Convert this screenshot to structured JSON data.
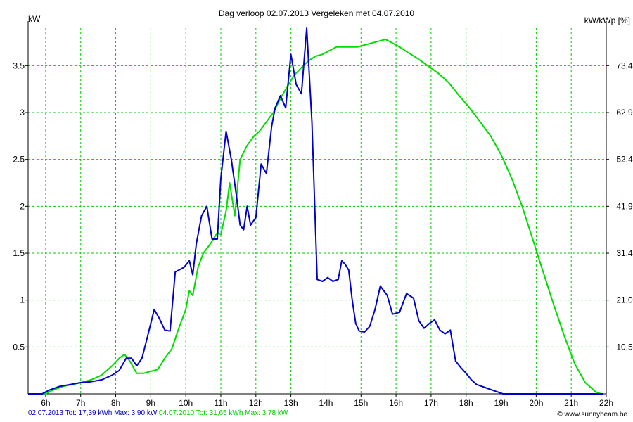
{
  "chart_data": {
    "type": "line",
    "title": "Dag  verloop 02.07.2013   Vergeleken met 04.07.2010",
    "ylabel_left": "kW",
    "ylabel_right": "kW/kWp [%]",
    "xlim": [
      5.5,
      22
    ],
    "ylim": [
      0,
      3.9
    ],
    "x_ticks": [
      6,
      7,
      8,
      9,
      10,
      11,
      12,
      13,
      14,
      15,
      16,
      17,
      18,
      19,
      20,
      21,
      22
    ],
    "x_tick_labels": [
      "6h",
      "7h",
      "8h",
      "9h",
      "10h",
      "11h",
      "12h",
      "13h",
      "14h",
      "15h",
      "16h",
      "17h",
      "18h",
      "19h",
      "20h",
      "21h",
      "22h"
    ],
    "y_ticks": [
      0.5,
      1,
      1.5,
      2,
      2.5,
      3,
      3.5
    ],
    "y_tick_labels": [
      "0.5",
      "1",
      "1.5",
      "2",
      "2.5",
      "3",
      "3.5"
    ],
    "y2_ticks": [
      0.5,
      1,
      1.5,
      2,
      2.5,
      3,
      3.5
    ],
    "y2_tick_labels": [
      "10,5",
      "21,0",
      "31,4",
      "41,9",
      "52,4",
      "62,9",
      "73,4"
    ],
    "grid": true,
    "series": [
      {
        "name": "02.07.2013",
        "color": "#0000cc",
        "x": [
          5.5,
          5.9,
          6.1,
          6.4,
          6.7,
          7.0,
          7.3,
          7.6,
          7.9,
          8.1,
          8.3,
          8.45,
          8.6,
          8.75,
          8.9,
          9.1,
          9.25,
          9.4,
          9.55,
          9.7,
          9.85,
          9.95,
          10.1,
          10.2,
          10.3,
          10.45,
          10.6,
          10.75,
          10.9,
          11.0,
          11.15,
          11.3,
          11.45,
          11.55,
          11.65,
          11.75,
          11.85,
          12.0,
          12.15,
          12.3,
          12.45,
          12.55,
          12.7,
          12.85,
          13.0,
          13.15,
          13.3,
          13.45,
          13.6,
          13.75,
          13.9,
          14.05,
          14.2,
          14.35,
          14.45,
          14.55,
          14.65,
          14.75,
          14.85,
          14.95,
          15.1,
          15.25,
          15.4,
          15.55,
          15.75,
          15.9,
          16.1,
          16.3,
          16.5,
          16.65,
          16.8,
          16.95,
          17.1,
          17.25,
          17.4,
          17.55,
          17.7,
          17.85,
          18.0,
          18.15,
          18.3,
          18.45,
          18.6,
          18.75,
          18.9,
          19.05,
          19.2,
          19.35,
          19.5,
          19.7,
          19.9,
          20.1,
          20.3,
          20.5,
          20.7,
          20.9,
          21.1,
          21.3,
          21.5,
          21.7,
          21.9
        ],
        "values": [
          0.0,
          0.0,
          0.04,
          0.08,
          0.1,
          0.12,
          0.13,
          0.15,
          0.2,
          0.25,
          0.38,
          0.38,
          0.3,
          0.38,
          0.6,
          0.9,
          0.8,
          0.68,
          0.67,
          1.3,
          1.33,
          1.35,
          1.42,
          1.27,
          1.6,
          1.9,
          2.0,
          1.65,
          1.65,
          2.3,
          2.8,
          2.5,
          2.1,
          1.8,
          1.75,
          2.0,
          1.8,
          1.88,
          2.45,
          2.35,
          2.85,
          3.05,
          3.18,
          3.05,
          3.62,
          3.3,
          3.2,
          3.9,
          2.9,
          1.22,
          1.2,
          1.24,
          1.2,
          1.22,
          1.42,
          1.38,
          1.32,
          1.0,
          0.75,
          0.67,
          0.66,
          0.72,
          0.9,
          1.15,
          1.05,
          0.85,
          0.87,
          1.07,
          1.02,
          0.78,
          0.7,
          0.75,
          0.79,
          0.68,
          0.64,
          0.68,
          0.35,
          0.28,
          0.22,
          0.15,
          0.1,
          0.08,
          0.06,
          0.04,
          0.02,
          0.0,
          0.0,
          0.0,
          0.0,
          0.0,
          0.0,
          0.0,
          0.0,
          0.0,
          0.0,
          0.0,
          0.0,
          0.0,
          0.0,
          0.0,
          0.0
        ]
      },
      {
        "name": "04.07.2010",
        "color": "#00dd00",
        "x": [
          5.5,
          6.0,
          6.2,
          6.5,
          7.0,
          7.3,
          7.6,
          7.9,
          8.1,
          8.25,
          8.4,
          8.6,
          8.8,
          9.0,
          9.2,
          9.4,
          9.6,
          9.8,
          10.0,
          10.1,
          10.2,
          10.35,
          10.5,
          10.7,
          10.9,
          11.0,
          11.15,
          11.25,
          11.4,
          11.55,
          11.75,
          11.95,
          12.1,
          12.3,
          12.5,
          12.7,
          12.9,
          13.1,
          13.3,
          13.5,
          13.7,
          13.9,
          14.1,
          14.3,
          14.5,
          14.7,
          14.9,
          15.1,
          15.3,
          15.5,
          15.7,
          15.9,
          16.1,
          16.3,
          16.6,
          16.9,
          17.2,
          17.5,
          17.8,
          18.1,
          18.4,
          18.7,
          19.0,
          19.3,
          19.6,
          19.9,
          20.2,
          20.5,
          20.8,
          21.1,
          21.4,
          21.7,
          21.85
        ],
        "values": [
          0.0,
          0.0,
          0.04,
          0.08,
          0.12,
          0.15,
          0.2,
          0.3,
          0.38,
          0.42,
          0.35,
          0.22,
          0.22,
          0.24,
          0.26,
          0.38,
          0.48,
          0.7,
          0.9,
          1.1,
          1.05,
          1.35,
          1.5,
          1.6,
          1.72,
          1.7,
          1.95,
          2.25,
          1.9,
          2.5,
          2.65,
          2.75,
          2.8,
          2.9,
          3.0,
          3.15,
          3.28,
          3.4,
          3.48,
          3.55,
          3.6,
          3.62,
          3.66,
          3.7,
          3.7,
          3.7,
          3.7,
          3.72,
          3.74,
          3.76,
          3.78,
          3.74,
          3.7,
          3.65,
          3.58,
          3.5,
          3.42,
          3.32,
          3.18,
          3.05,
          2.9,
          2.75,
          2.55,
          2.3,
          2.0,
          1.65,
          1.3,
          0.95,
          0.62,
          0.32,
          0.12,
          0.02,
          0.0
        ]
      }
    ]
  },
  "footer": {
    "series1_text": "02.07.2013 Tot: 17,39 kWh Max: 3,90 kW",
    "series2_text": "04.07.2010 Tot: 31,65 kWh Max: 3,78 kW",
    "credit": "© www.sunnybeam.be"
  },
  "colors": {
    "grid": "#00cc00",
    "axis": "#000000",
    "series1": "#0000cc",
    "series2": "#00dd00"
  }
}
